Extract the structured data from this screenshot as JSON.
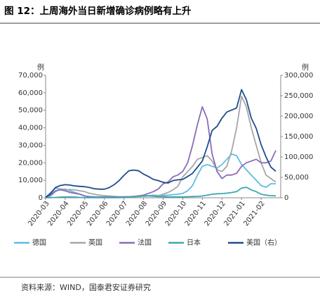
{
  "chart_data": {
    "type": "line",
    "title": "图 12：上周海外当日新增确诊病例略有上升",
    "source": "资料来源：WIND，国泰君安证券研究",
    "y_label": "例",
    "y2_label": "例",
    "x": [
      "2020-03",
      null,
      null,
      null,
      "2020-04",
      null,
      null,
      null,
      "2020-05",
      null,
      null,
      null,
      "2020-06",
      null,
      null,
      null,
      "2020-07",
      null,
      null,
      null,
      "2020-08",
      null,
      null,
      null,
      "2020-09",
      null,
      null,
      null,
      "2020-10",
      null,
      null,
      null,
      "2020-11",
      null,
      null,
      null,
      "2020-12",
      null,
      null,
      null,
      "2021-01",
      null,
      null,
      null,
      "2021-02",
      null,
      null,
      null
    ],
    "ylim": [
      0,
      70000
    ],
    "yticks": [
      0,
      {
        "value": 10000,
        "label": "10,000"
      },
      {
        "value": 20000,
        "label": "20,000"
      },
      {
        "value": 30000,
        "label": "30,000"
      },
      {
        "value": 40000,
        "label": "40,000"
      },
      {
        "value": 50000,
        "label": "50,000"
      },
      {
        "value": 60000,
        "label": "60,000"
      },
      {
        "value": 70000,
        "label": "70,000"
      }
    ],
    "y2lim": [
      0,
      300000
    ],
    "y2ticks": [
      0,
      {
        "value": 50000,
        "label": "50,000"
      },
      {
        "value": 100000,
        "label": "100,000"
      },
      {
        "value": 150000,
        "label": "150,000"
      },
      {
        "value": 200000,
        "label": "200,000"
      },
      {
        "value": 250000,
        "label": "250,000"
      },
      {
        "value": 300000,
        "label": "300,000"
      }
    ],
    "series": [
      {
        "name": "德国",
        "color": "#5bbde6",
        "values": [
          200,
          3000,
          5500,
          5000,
          5000,
          4000,
          3000,
          2000,
          1000,
          700,
          600,
          500,
          400,
          500,
          500,
          400,
          400,
          500,
          600,
          800,
          1000,
          1200,
          1500,
          1300,
          1300,
          1500,
          1800,
          2000,
          2500,
          4000,
          7000,
          13000,
          18000,
          19000,
          18000,
          17000,
          19000,
          22000,
          25000,
          24000,
          19000,
          16000,
          13000,
          10000,
          7000,
          6000,
          8000,
          8000
        ]
      },
      {
        "name": "英国",
        "color": "#a6a6a6",
        "values": [
          100,
          1000,
          3500,
          5000,
          4500,
          4700,
          4500,
          4000,
          3500,
          2500,
          2000,
          1500,
          1200,
          1000,
          800,
          600,
          600,
          600,
          600,
          700,
          800,
          1000,
          1100,
          1200,
          2000,
          3000,
          4500,
          6500,
          12000,
          15000,
          18000,
          22000,
          23000,
          24000,
          21000,
          16000,
          15000,
          18000,
          27000,
          40000,
          58000,
          52000,
          40000,
          30000,
          20000,
          13000,
          11000,
          9000
        ]
      },
      {
        "name": "法国",
        "color": "#8b6bb8",
        "values": [
          200,
          1500,
          4000,
          4500,
          4000,
          3000,
          2500,
          2000,
          1000,
          500,
          300,
          400,
          400,
          400,
          400,
          400,
          500,
          600,
          800,
          1100,
          1500,
          2500,
          3500,
          5000,
          8000,
          9000,
          12000,
          13000,
          15000,
          20000,
          30000,
          42000,
          52000,
          45000,
          25000,
          15000,
          11000,
          13000,
          13000,
          14000,
          18000,
          20000,
          21000,
          22000,
          20000,
          20000,
          21000,
          27000
        ]
      },
      {
        "name": "日本",
        "color": "#3aa8b0",
        "values": [
          50,
          100,
          200,
          400,
          500,
          500,
          400,
          200,
          100,
          50,
          50,
          50,
          50,
          50,
          80,
          100,
          200,
          400,
          700,
          900,
          1200,
          1100,
          900,
          700,
          600,
          500,
          500,
          500,
          500,
          600,
          700,
          800,
          1000,
          1500,
          2000,
          2300,
          2400,
          2600,
          3000,
          3500,
          5500,
          6000,
          4500,
          3500,
          2000,
          1500,
          1200,
          1100
        ]
      },
      {
        "name": "美国（右）",
        "color": "#1f4e8c",
        "axis": "y2",
        "values": [
          1000,
          10000,
          25000,
          30000,
          32000,
          31000,
          29000,
          28000,
          27000,
          25000,
          22000,
          21000,
          21000,
          25000,
          32000,
          42000,
          55000,
          66000,
          68000,
          66000,
          58000,
          52000,
          45000,
          42000,
          38000,
          36000,
          42000,
          44000,
          45000,
          52000,
          60000,
          75000,
          90000,
          125000,
          165000,
          175000,
          195000,
          210000,
          215000,
          220000,
          265000,
          240000,
          195000,
          170000,
          130000,
          100000,
          75000,
          65000
        ]
      }
    ]
  }
}
